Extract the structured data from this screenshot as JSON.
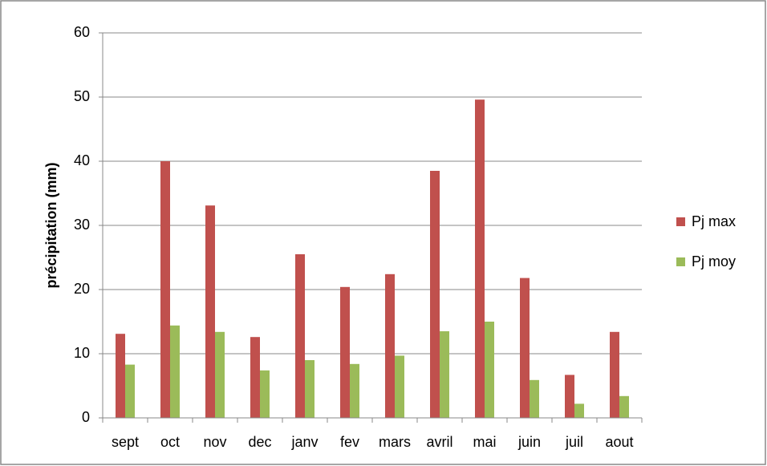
{
  "chart_data": {
    "type": "bar",
    "y_label": "précipitation (mm)",
    "categories": [
      "sept",
      "oct",
      "nov",
      "dec",
      "janv",
      "fev",
      "mars",
      "avril",
      "mai",
      "juin",
      "juil",
      "aout"
    ],
    "series": [
      {
        "name": "Pj max",
        "color": "#c0504d",
        "values": [
          13.1,
          40.0,
          33.1,
          12.6,
          25.5,
          20.4,
          22.4,
          38.5,
          49.6,
          21.8,
          6.7,
          13.4
        ]
      },
      {
        "name": "Pj moy",
        "color": "#9bbb59",
        "values": [
          8.3,
          14.4,
          13.4,
          7.4,
          9.0,
          8.4,
          9.7,
          13.5,
          15.0,
          5.9,
          2.2,
          3.4
        ]
      }
    ],
    "ylim": [
      0,
      60
    ],
    "yticks": [
      0,
      10,
      20,
      30,
      40,
      50,
      60
    ],
    "grid": true,
    "legend": "right"
  }
}
